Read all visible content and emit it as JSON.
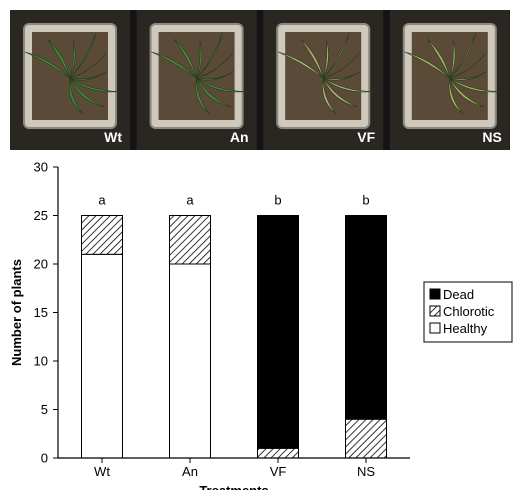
{
  "photos": [
    {
      "label": "Wt",
      "foliage": "#3f8f3a"
    },
    {
      "label": "An",
      "foliage": "#4a8f3f"
    },
    {
      "label": "VF",
      "foliage": "#b8b07a"
    },
    {
      "label": "NS",
      "foliage": "#a9b565"
    }
  ],
  "chart_data": {
    "type": "bar",
    "stacked": true,
    "categories": [
      "Wt",
      "An",
      "VF",
      "NS"
    ],
    "series": [
      {
        "name": "Healthy",
        "values": [
          21,
          20,
          0,
          0
        ],
        "fill": "#ffffff"
      },
      {
        "name": "Chlorotic",
        "values": [
          4,
          5,
          1,
          4
        ],
        "fill": "hatch"
      },
      {
        "name": "Dead",
        "values": [
          0,
          0,
          24,
          21
        ],
        "fill": "#000000"
      }
    ],
    "group_letters": [
      "a",
      "a",
      "b",
      "b"
    ],
    "ylabel": "Number of plants",
    "xlabel": "Treatments",
    "ylim": [
      0,
      30
    ],
    "yticks": [
      0,
      5,
      10,
      15,
      20,
      25,
      30
    ],
    "legend": {
      "placement": "right",
      "order": [
        "Dead",
        "Chlorotic",
        "Healthy"
      ]
    },
    "grid": false
  }
}
